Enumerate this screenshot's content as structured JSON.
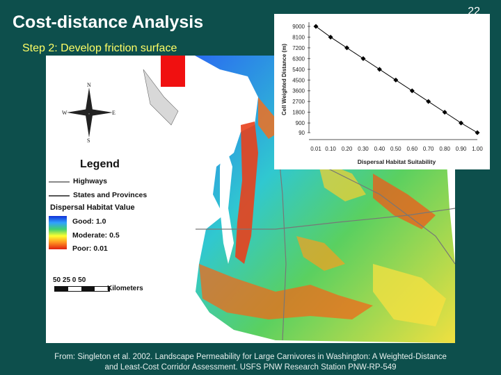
{
  "slide": {
    "title": "Cost-distance Analysis",
    "subtitle": "Step 2: Develop friction surface",
    "number": "22",
    "caption_line1": "From: Singleton et al. 2002. Landscape Permeability for Large Carnivores in Washington: A Weighted-Distance",
    "caption_line2": "and Least-Cost Corridor Assessment. USFS PNW Research Station PNW-RP-549"
  },
  "map": {
    "legend_title": "Legend",
    "highways_label": "Highways",
    "states_label": "States and Provinces",
    "habitat_title": "Dispersal Habitat Value",
    "good_label": "Good: 1.0",
    "moderate_label": "Moderate: 0.5",
    "poor_label": "Poor: 0.01",
    "scale_numbers": "50  25    0         50",
    "scale_unit": "Kilometers",
    "compass": {
      "n": "N",
      "s": "S",
      "e": "E",
      "w": "W"
    },
    "colors": {
      "good": "#1030d8",
      "moderate": "#ffff30",
      "poor": "#e02010",
      "highway": "#888888",
      "states": "#555555"
    }
  },
  "chart_data": {
    "type": "line",
    "xlabel": "Dispersal Habitat Suitability",
    "ylabel": "Cell Weighted Distance (m)",
    "x": [
      0.01,
      0.1,
      0.2,
      0.3,
      0.4,
      0.5,
      0.6,
      0.7,
      0.8,
      0.9,
      1.0
    ],
    "x_tick_labels": [
      "0.01",
      "0.10",
      "0.20",
      "0.30",
      "0.40",
      "0.50",
      "0.60",
      "0.70",
      "0.80",
      "0.90",
      "1.00"
    ],
    "y": [
      9000,
      8100,
      7200,
      6300,
      5400,
      4500,
      3600,
      2700,
      1800,
      900,
      90
    ],
    "y_tick_labels": [
      "9000",
      "8100",
      "7200",
      "6300",
      "5400",
      "4500",
      "3600",
      "2700",
      "1800",
      "900",
      "90"
    ],
    "ylim": [
      90,
      9000
    ],
    "xlim": [
      0.01,
      1.0
    ],
    "marker": "diamond",
    "grid": false,
    "line_color": "#000000"
  }
}
